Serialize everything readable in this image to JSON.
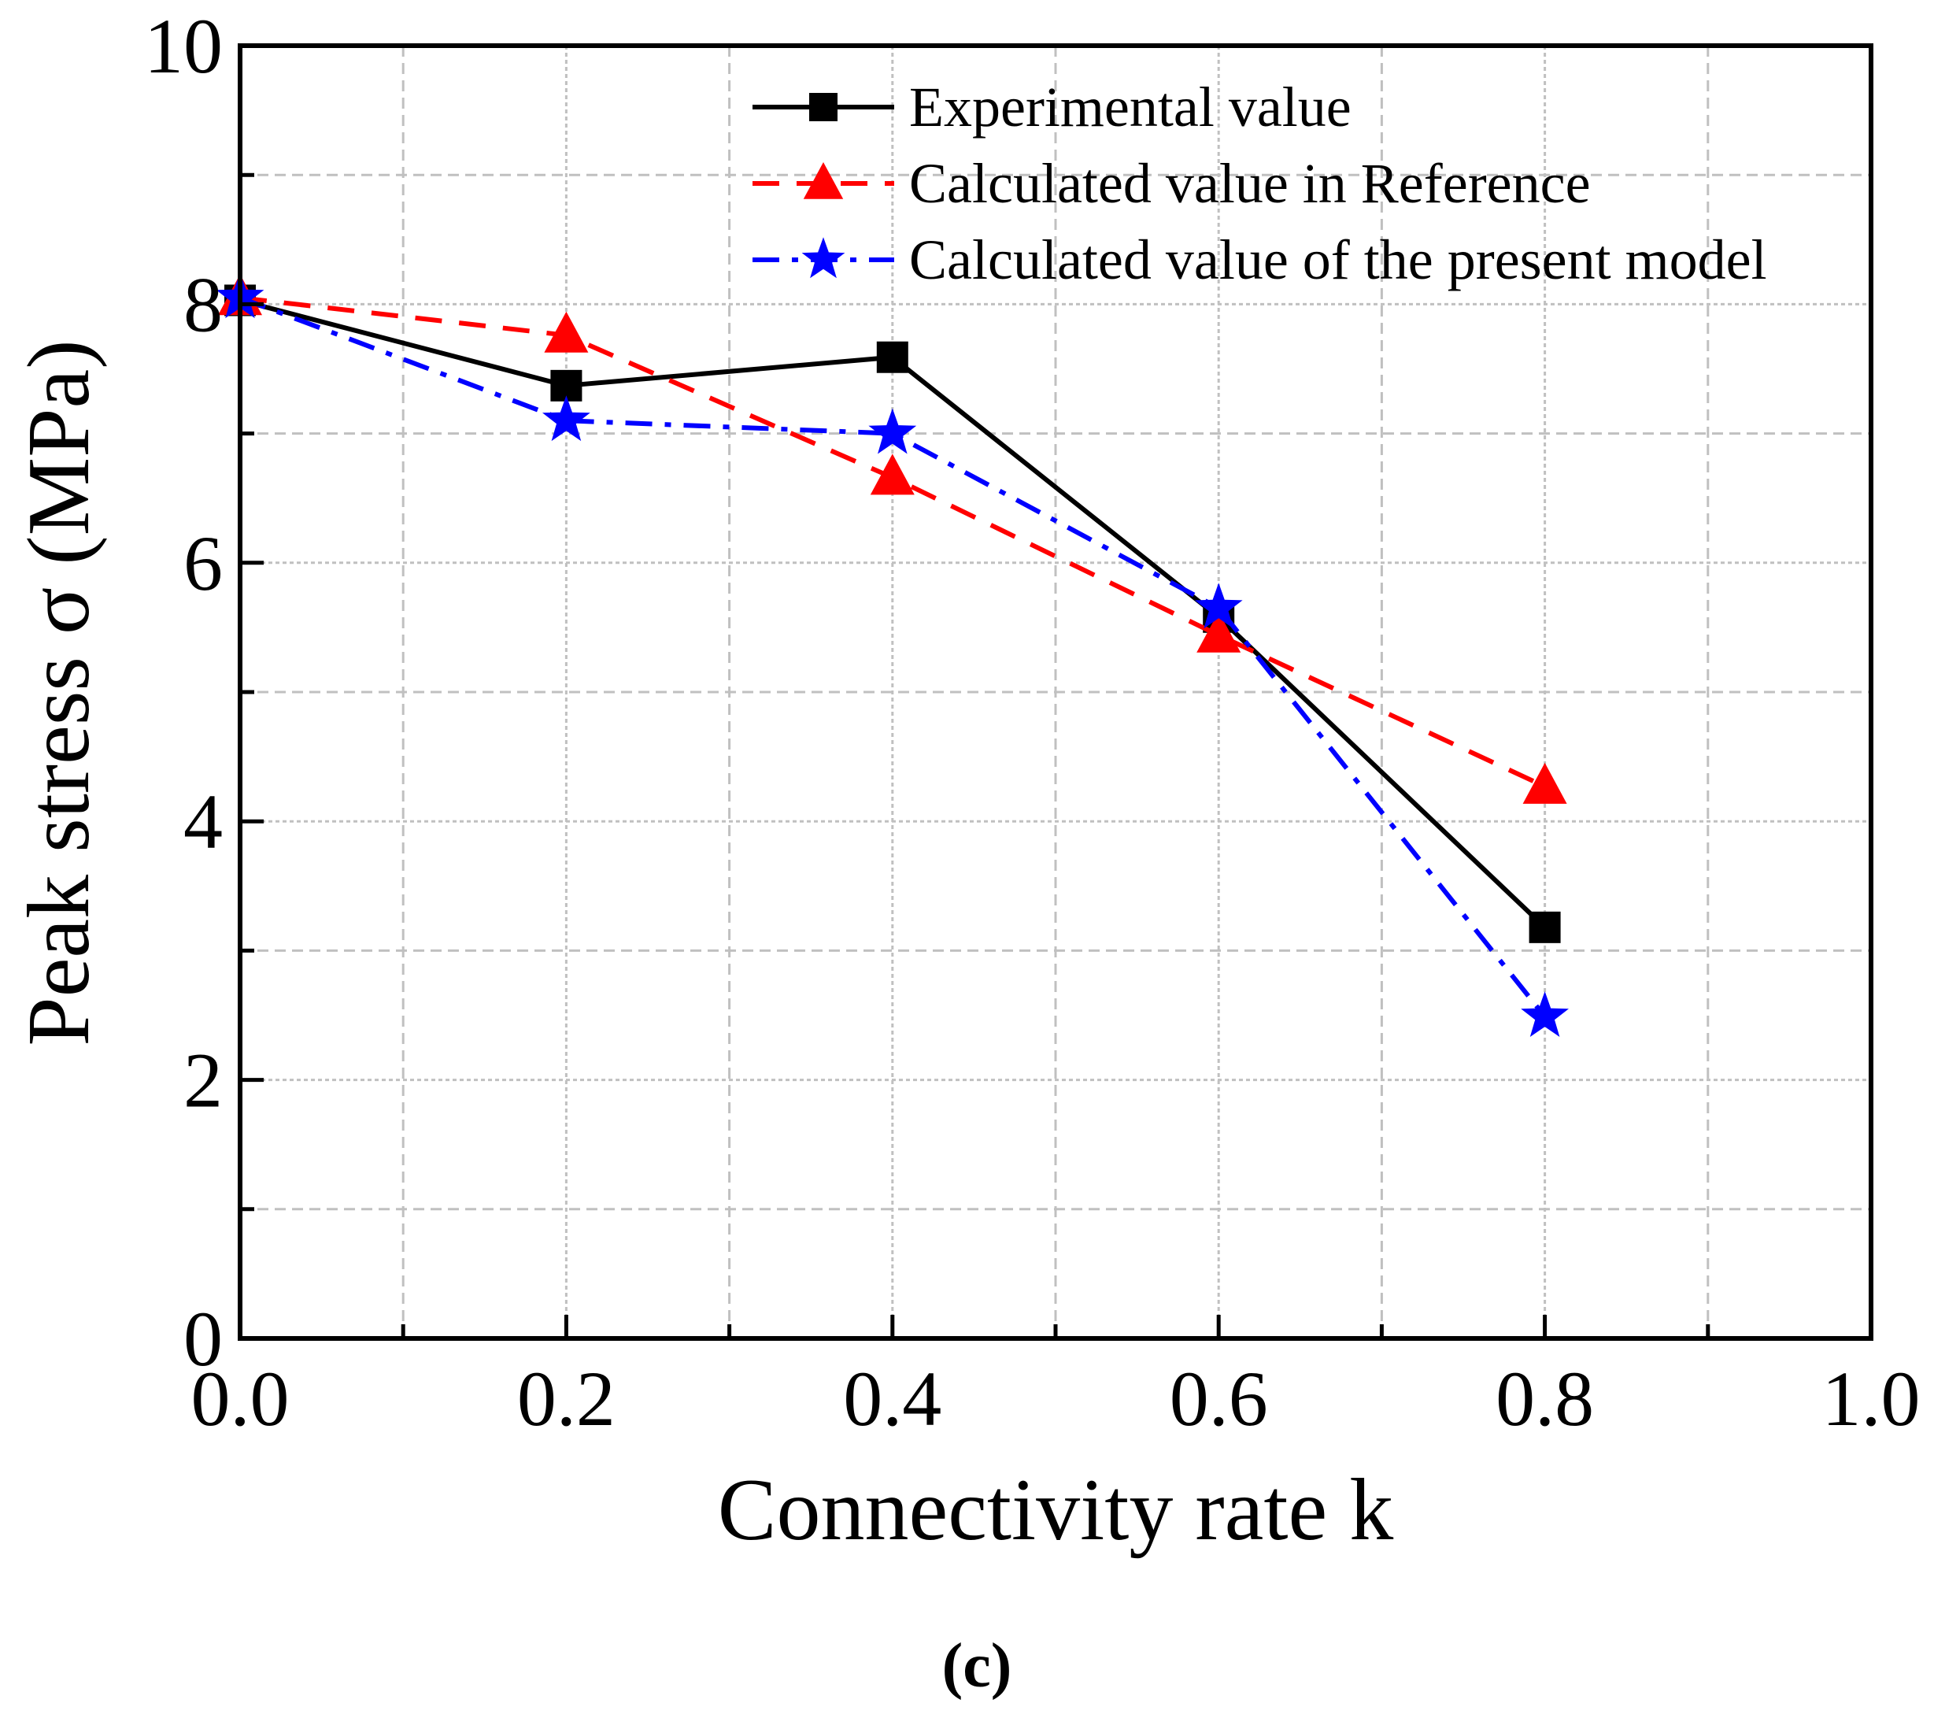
{
  "chart_data": {
    "type": "line",
    "title": "",
    "xlabel": "Connectivity rate k",
    "ylabel": "Peak stress σ (MPa)",
    "caption": "(c)",
    "xlim": [
      0.0,
      1.0
    ],
    "ylim": [
      0,
      10
    ],
    "xticks": [
      "0.0",
      "0.2",
      "0.4",
      "0.6",
      "0.8",
      "1.0"
    ],
    "yticks": [
      "0",
      "2",
      "4",
      "6",
      "8",
      "10"
    ],
    "grid": true,
    "legend_position": "top-right",
    "x": [
      0.0,
      0.2,
      0.4,
      0.6,
      0.8
    ],
    "series": [
      {
        "name": "Experimental value",
        "color": "#000000",
        "marker": "square",
        "line": "solid",
        "values": [
          8.03,
          7.37,
          7.59,
          5.58,
          3.18
        ]
      },
      {
        "name": "Calculated value in Reference",
        "color": "#ff0000",
        "marker": "triangle",
        "line": "dash",
        "values": [
          8.05,
          7.76,
          6.66,
          5.44,
          4.27
        ]
      },
      {
        "name": "Calculated value of the present model",
        "color": "#0000ff",
        "marker": "star",
        "line": "dashdot",
        "values": [
          8.05,
          7.1,
          7.0,
          5.65,
          2.49
        ]
      }
    ]
  }
}
